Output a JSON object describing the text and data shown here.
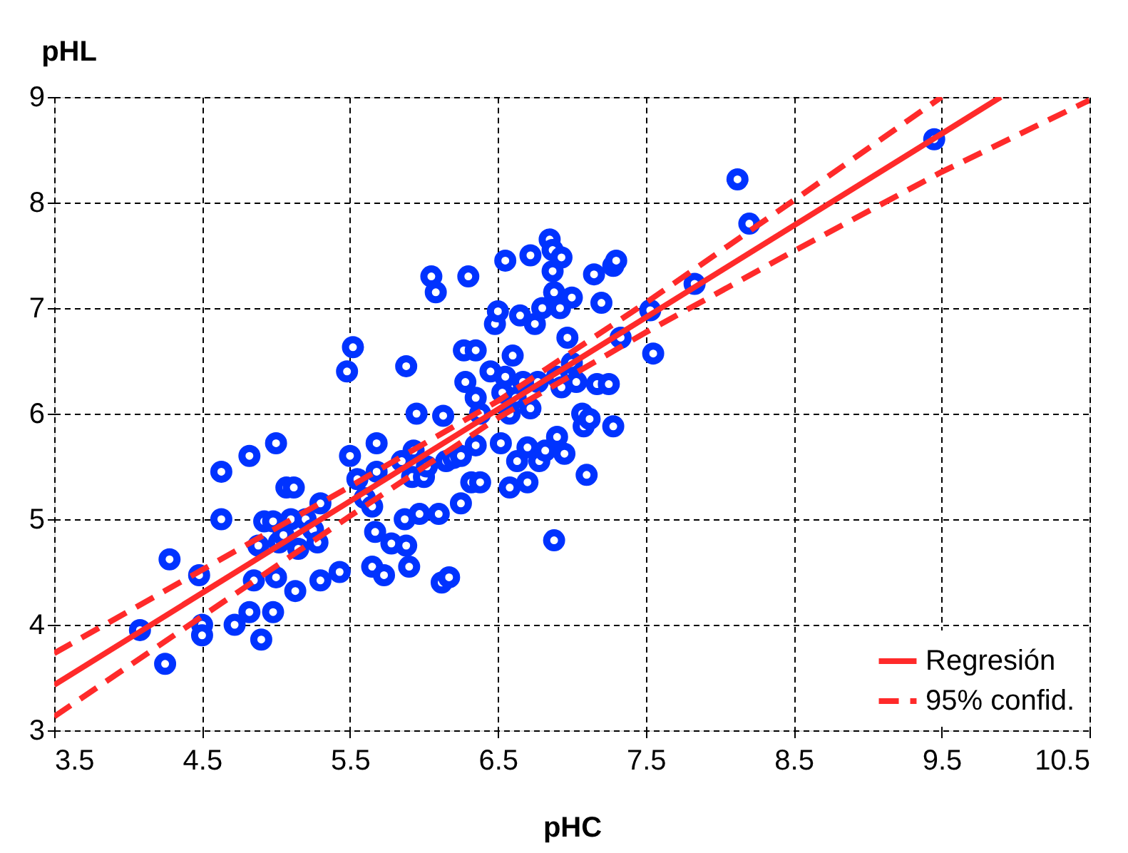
{
  "chart_data": {
    "type": "scatter",
    "xlabel": "pHC",
    "ylabel": "pHL",
    "xlim": [
      3.5,
      10.5
    ],
    "ylim": [
      3,
      9
    ],
    "xticks": [
      3.5,
      4.5,
      5.5,
      6.5,
      7.5,
      8.5,
      9.5,
      10.5
    ],
    "yticks": [
      3,
      4,
      5,
      6,
      7,
      8,
      9
    ],
    "grid": true,
    "legend": "bottom right",
    "series": [
      {
        "marker": "circle",
        "color": "#0033ff",
        "x": [
          4.08,
          4.25,
          4.28,
          4.48,
          4.5,
          4.5,
          4.63,
          4.63,
          4.72,
          4.82,
          4.82,
          4.85,
          4.88,
          4.9,
          4.92,
          4.98,
          4.98,
          5.0,
          5.02,
          5.0,
          5.05,
          5.07,
          5.12,
          5.1,
          5.13,
          5.15,
          5.2,
          5.25,
          5.28,
          5.3,
          5.3,
          5.43,
          5.48,
          5.5,
          5.52,
          5.55,
          5.6,
          5.65,
          5.65,
          5.68,
          5.67,
          5.68,
          5.73,
          5.78,
          5.85,
          5.87,
          5.88,
          5.88,
          5.9,
          5.92,
          5.93,
          5.95,
          5.97,
          6.0,
          6.02,
          6.05,
          6.08,
          6.1,
          6.12,
          6.13,
          6.15,
          6.17,
          6.2,
          6.25,
          6.25,
          6.27,
          6.28,
          6.3,
          6.32,
          6.35,
          6.35,
          6.35,
          6.38,
          6.38,
          6.45,
          6.48,
          6.5,
          6.52,
          6.53,
          6.55,
          6.55,
          6.58,
          6.58,
          6.6,
          6.62,
          6.63,
          6.65,
          6.67,
          6.7,
          6.7,
          6.72,
          6.72,
          6.75,
          6.77,
          6.78,
          6.8,
          6.82,
          6.85,
          6.87,
          6.87,
          6.88,
          6.88,
          6.9,
          6.9,
          6.92,
          6.93,
          6.93,
          6.95,
          6.97,
          7.0,
          7.0,
          7.03,
          7.07,
          7.08,
          7.1,
          7.12,
          7.15,
          7.17,
          7.2,
          7.25,
          7.28,
          7.28,
          7.3,
          7.33,
          7.53,
          7.55,
          7.83,
          8.12,
          8.2,
          9.45
        ],
        "values": [
          3.95,
          3.63,
          4.62,
          4.47,
          4.0,
          3.9,
          5.0,
          5.45,
          4.0,
          4.12,
          5.6,
          4.42,
          4.75,
          3.86,
          4.98,
          4.98,
          4.12,
          4.45,
          4.78,
          5.72,
          4.85,
          5.3,
          5.3,
          5.0,
          4.32,
          4.72,
          5.0,
          4.9,
          4.78,
          4.42,
          5.15,
          4.5,
          6.4,
          5.6,
          6.63,
          5.38,
          5.2,
          4.55,
          5.12,
          5.72,
          4.88,
          5.45,
          4.47,
          4.77,
          5.55,
          5.0,
          6.45,
          4.75,
          4.55,
          5.4,
          5.65,
          6.0,
          5.05,
          5.4,
          5.5,
          7.3,
          7.15,
          5.05,
          4.4,
          5.98,
          5.55,
          4.45,
          5.58,
          5.6,
          5.15,
          6.6,
          6.3,
          7.3,
          5.35,
          6.6,
          6.15,
          5.7,
          5.35,
          6.0,
          6.4,
          6.85,
          6.97,
          5.72,
          6.2,
          7.45,
          6.35,
          6.0,
          5.3,
          6.55,
          6.15,
          5.55,
          6.93,
          6.3,
          5.68,
          5.35,
          6.05,
          7.5,
          6.85,
          6.3,
          5.55,
          7.0,
          5.65,
          7.65,
          7.55,
          7.35,
          7.15,
          4.8,
          6.35,
          5.78,
          7.0,
          7.48,
          6.25,
          5.62,
          6.72,
          7.1,
          6.48,
          6.3,
          6.0,
          5.88,
          5.42,
          5.95,
          7.32,
          6.28,
          7.05,
          6.28,
          7.4,
          5.88,
          7.45,
          6.72,
          6.98,
          6.57,
          7.23,
          8.22,
          7.8,
          8.6
        ]
      },
      {
        "type": "line",
        "name": "Regresión",
        "color": "#ff2a2a",
        "line_style": "solid",
        "x": [
          3.5,
          9.9
        ],
        "values": [
          3.43,
          9.0
        ]
      },
      {
        "type": "line",
        "name": "95% confid.",
        "color": "#ff2a2a",
        "line_style": "dashed",
        "x": [
          3.5,
          4.5,
          5.5,
          6.5,
          7.5,
          8.5,
          9.5
        ],
        "values": [
          3.73,
          4.52,
          5.31,
          6.12,
          7.05,
          8.02,
          9.0
        ]
      },
      {
        "type": "line",
        "color": "#ff2a2a",
        "line_style": "dashed",
        "x": [
          3.5,
          4.5,
          5.5,
          6.5,
          7.5,
          8.5,
          9.5,
          10.5
        ],
        "values": [
          3.13,
          4.08,
          5.03,
          5.96,
          6.77,
          7.54,
          8.29,
          8.97
        ]
      }
    ]
  }
}
